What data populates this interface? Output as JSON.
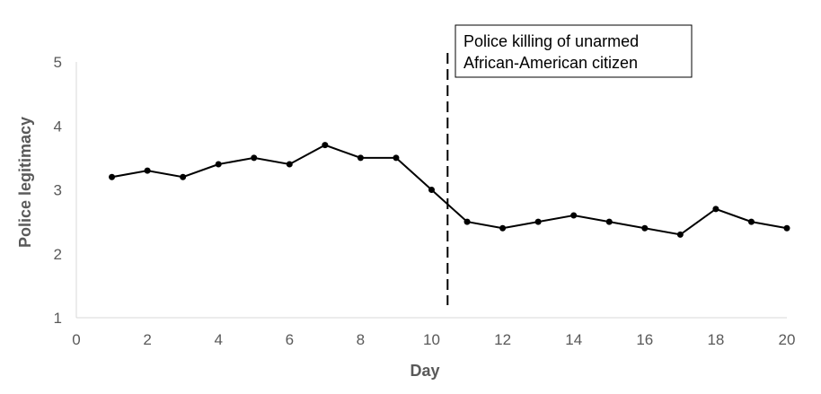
{
  "chart_data": {
    "type": "line",
    "xlabel": "Day",
    "ylabel": "Police legitimacy",
    "xlim": [
      0,
      20
    ],
    "ylim": [
      1,
      5
    ],
    "xticks": [
      0,
      2,
      4,
      6,
      8,
      10,
      12,
      14,
      16,
      18,
      20
    ],
    "yticks": [
      1,
      2,
      3,
      4,
      5
    ],
    "grid": false,
    "series": [
      {
        "x": [
          1,
          2,
          3,
          4,
          5,
          6,
          7,
          8,
          9,
          10,
          11,
          12,
          13,
          14,
          15,
          16,
          17,
          18,
          19,
          20
        ],
        "values": [
          3.2,
          3.3,
          3.2,
          3.4,
          3.5,
          3.4,
          3.7,
          3.5,
          3.5,
          3.0,
          2.5,
          2.4,
          2.5,
          2.6,
          2.5,
          2.4,
          2.3,
          2.7,
          2.5,
          2.4
        ],
        "color": "#000000"
      }
    ],
    "event_line": {
      "x": 10.45,
      "style": "dashed"
    },
    "annotation": {
      "lines": [
        "Police killing of unarmed",
        "African-American  citizen"
      ]
    }
  }
}
